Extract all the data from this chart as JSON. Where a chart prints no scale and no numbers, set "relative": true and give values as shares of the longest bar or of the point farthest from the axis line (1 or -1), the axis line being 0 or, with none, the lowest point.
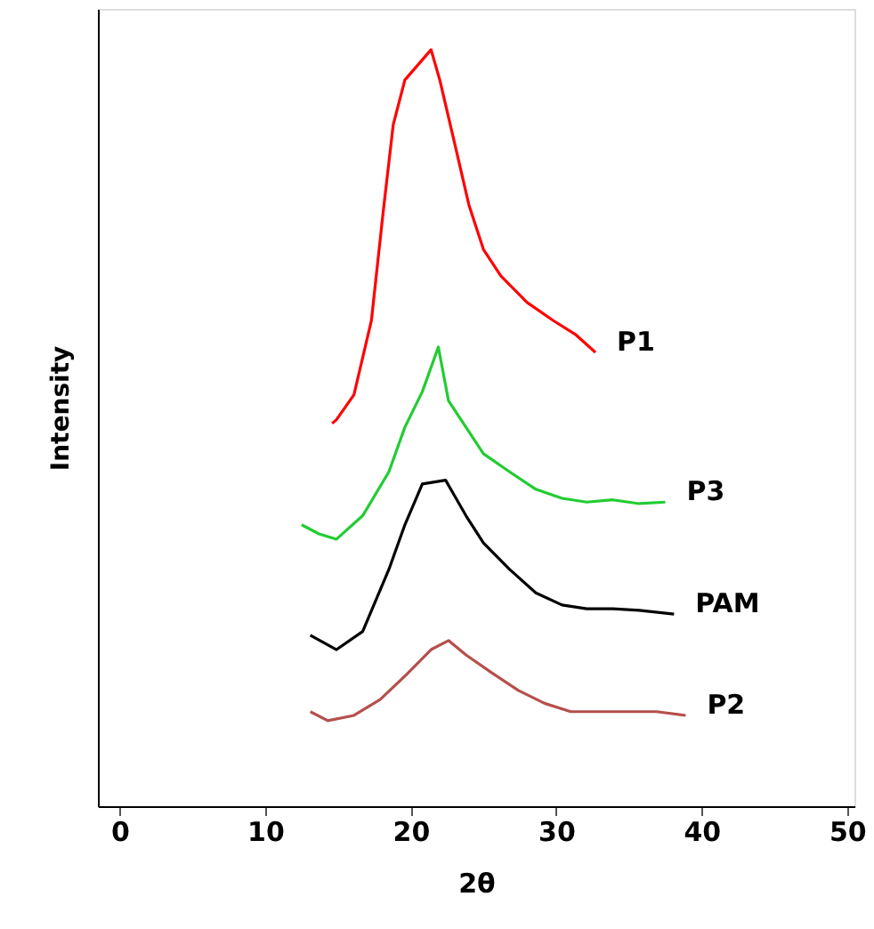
{
  "chart_data": {
    "type": "line",
    "xlabel": "2θ",
    "ylabel": "Intensity",
    "relative": true,
    "xlim": [
      -1.5,
      50.5
    ],
    "xticks": [
      0,
      10,
      20,
      30,
      40,
      50
    ],
    "grid": false,
    "tick_labels": "x",
    "marker": "none",
    "line_style": "solid",
    "series": [
      {
        "name": "P1",
        "color": "#ff0000",
        "x": [
          14.6,
          14.9,
          16.1,
          17.3,
          18.1,
          18.8,
          19.6,
          21.4,
          22.0,
          23.0,
          24.0,
          25.0,
          26.2,
          28.0,
          29.8,
          31.3,
          32.7
        ],
        "values": [
          0.506,
          0.511,
          0.544,
          0.642,
          0.784,
          0.901,
          0.96,
          1.0,
          0.96,
          0.878,
          0.795,
          0.736,
          0.701,
          0.666,
          0.642,
          0.624,
          0.6
        ]
      },
      {
        "name": "P3",
        "color": "#22cc33",
        "x": [
          12.5,
          13.7,
          14.9,
          16.7,
          18.5,
          19.6,
          20.8,
          21.9,
          22.6,
          23.8,
          25.0,
          26.8,
          28.6,
          30.4,
          32.1,
          33.9,
          35.7,
          37.5
        ],
        "values": [
          0.372,
          0.36,
          0.353,
          0.384,
          0.442,
          0.501,
          0.548,
          0.607,
          0.536,
          0.501,
          0.466,
          0.442,
          0.419,
          0.407,
          0.402,
          0.405,
          0.4,
          0.402
        ]
      },
      {
        "name": "PAM",
        "color": "#000000",
        "x": [
          13.1,
          14.9,
          16.7,
          18.5,
          19.6,
          20.8,
          22.4,
          23.8,
          25.0,
          26.8,
          28.6,
          30.4,
          32.1,
          33.9,
          35.7,
          38.1
        ],
        "values": [
          0.226,
          0.207,
          0.231,
          0.313,
          0.372,
          0.426,
          0.431,
          0.384,
          0.348,
          0.313,
          0.282,
          0.266,
          0.261,
          0.261,
          0.259,
          0.254
        ]
      },
      {
        "name": "P2",
        "color": "#b5504c",
        "x": [
          13.1,
          14.3,
          16.1,
          17.9,
          19.6,
          21.4,
          22.6,
          23.8,
          25.6,
          27.4,
          29.2,
          31.0,
          32.7,
          35.1,
          36.9,
          38.9
        ],
        "values": [
          0.125,
          0.113,
          0.12,
          0.141,
          0.172,
          0.207,
          0.219,
          0.2,
          0.176,
          0.153,
          0.136,
          0.125,
          0.125,
          0.125,
          0.125,
          0.12
        ]
      }
    ]
  }
}
